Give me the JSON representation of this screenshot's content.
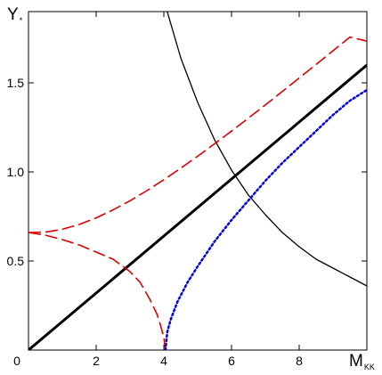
{
  "chart_data": {
    "type": "line",
    "title": "",
    "xlabel": "M",
    "xlabel_sub": "KK",
    "ylabel": "Y",
    "ylabel_sub": "*",
    "xlim": [
      0,
      10
    ],
    "ylim": [
      0,
      1.9
    ],
    "grid": false,
    "x_ticks": [
      {
        "value": 0,
        "label": "0"
      },
      {
        "value": 2,
        "label": "2"
      },
      {
        "value": 4,
        "label": "4"
      },
      {
        "value": 6,
        "label": "6"
      },
      {
        "value": 8,
        "label": "8"
      }
    ],
    "y_ticks": [
      {
        "value": 0.5,
        "label": "0.5"
      },
      {
        "value": 1.0,
        "label": "1.0"
      },
      {
        "value": 1.5,
        "label": "1.5"
      }
    ],
    "series": [
      {
        "style": "solid-thick",
        "color": "#000000",
        "x": [
          0,
          2,
          4,
          6,
          8,
          10
        ],
        "y": [
          0,
          0.32,
          0.64,
          0.96,
          1.28,
          1.6
        ]
      },
      {
        "style": "solid-thin",
        "color": "#000000",
        "x": [
          4.1,
          4.5,
          5,
          5.5,
          6,
          6.5,
          7,
          7.5,
          8,
          8.5,
          9,
          9.5,
          10
        ],
        "y": [
          1.9,
          1.64,
          1.39,
          1.18,
          1.01,
          0.87,
          0.76,
          0.66,
          0.58,
          0.51,
          0.46,
          0.41,
          0.36
        ]
      },
      {
        "style": "dashed",
        "color": "#dd0000",
        "x": [
          0,
          0.5,
          1,
          1.5,
          2,
          2.5,
          3,
          3.5,
          4,
          4.5,
          5,
          5.5,
          6,
          6.5,
          7,
          7.5,
          8,
          8.5,
          9,
          9.5,
          10
        ],
        "y": [
          0.66,
          0.662,
          0.678,
          0.705,
          0.742,
          0.787,
          0.838,
          0.895,
          0.956,
          1.021,
          1.088,
          1.158,
          1.229,
          1.302,
          1.376,
          1.451,
          1.527,
          1.603,
          1.68,
          1.757,
          1.734
        ]
      },
      {
        "style": "dashed",
        "color": "#dd0000",
        "x": [
          0,
          0.5,
          1,
          1.5,
          2,
          2.5,
          3,
          3.3,
          3.6,
          3.8,
          3.9,
          4.0,
          4.05
        ],
        "y": [
          0.66,
          0.645,
          0.62,
          0.59,
          0.55,
          0.51,
          0.44,
          0.38,
          0.28,
          0.2,
          0.14,
          0.07,
          0.0
        ]
      },
      {
        "style": "dotted",
        "color": "#0000dd",
        "x": [
          4.05,
          4.1,
          4.2,
          4.4,
          4.7,
          5,
          5.5,
          6,
          6.5,
          7,
          7.5,
          8,
          8.5,
          9,
          9.5,
          10
        ],
        "y": [
          0.0,
          0.1,
          0.17,
          0.27,
          0.38,
          0.47,
          0.61,
          0.73,
          0.84,
          0.95,
          1.05,
          1.14,
          1.23,
          1.32,
          1.4,
          1.46
        ]
      }
    ]
  }
}
